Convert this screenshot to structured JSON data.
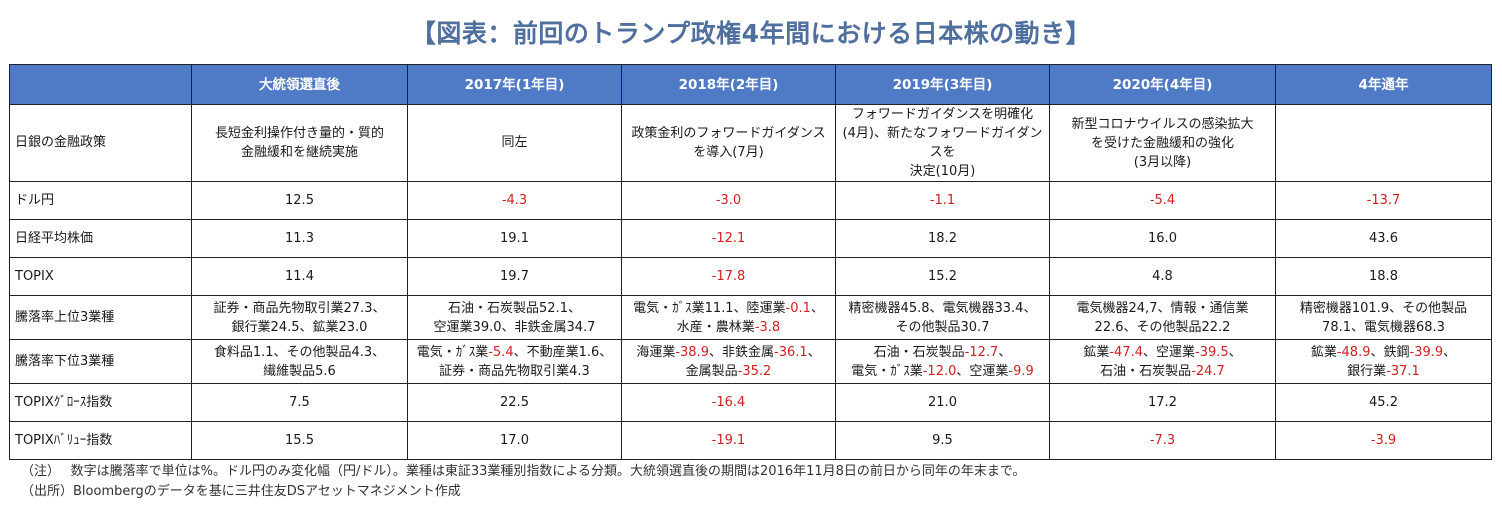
{
  "title": "【図表：前回のトランプ政権4年間における日本株の動き】",
  "headers": [
    "",
    "大統領選直後",
    "2017年(1年目)",
    "2018年(2年目)",
    "2019年(3年目)",
    "2020年(4年目)",
    "4年通年"
  ],
  "rows": {
    "policy": {
      "label": "日銀の金融政策",
      "c1": [
        "長短金利操作付き量的・質的",
        "金融緩和を継続実施"
      ],
      "c2": "同左",
      "c3": [
        "政策金利のフォワードガイダンス",
        "を導入(7月)"
      ],
      "c4": [
        "フォワードガイダンスを明確化",
        "(4月)、新たなフォワードガイダンスを",
        "決定(10月)"
      ],
      "c5": [
        "新型コロナウイルスの感染拡大",
        "を受けた金融緩和の強化",
        "(3月以降)"
      ],
      "c6": ""
    },
    "usdjpy": {
      "label": "ドル円",
      "values": [
        "12.5",
        "-4.3",
        "-3.0",
        "-1.1",
        "-5.4",
        "-13.7"
      ]
    },
    "nikkei": {
      "label": "日経平均株価",
      "values": [
        "11.3",
        "19.1",
        "-12.1",
        "18.2",
        "16.0",
        "43.6"
      ]
    },
    "topix": {
      "label": "TOPIX",
      "values": [
        "11.4",
        "19.7",
        "-17.8",
        "15.2",
        "4.8",
        "18.8"
      ]
    },
    "top3": {
      "label": "騰落率上位3業種",
      "c1": [
        "証券・商品先物取引業27.3、",
        "銀行業24.5、鉱業23.0"
      ],
      "c2": [
        "石油・石炭製品52.1、",
        "空運業39.0、非鉄金属34.7"
      ],
      "c3": {
        "l1a": "電気・ｶﾞｽ業11.1、陸運業",
        "l1b": "-0.1",
        "l1c": "、",
        "l2a": "水産・農林業",
        "l2b": "-3.8"
      },
      "c4": [
        "精密機器45.8、電気機器33.4、",
        "その他製品30.7"
      ],
      "c5": [
        "電気機器24,7、情報・通信業",
        "22.6、その他製品22.2"
      ],
      "c6": [
        "精密機器101.9、その他製品",
        "78.1、電気機器68.3"
      ]
    },
    "bottom3": {
      "label": "騰落率下位3業種",
      "c1": [
        "食料品1.1、その他製品4.3、",
        "繊維製品5.6"
      ],
      "c2": {
        "l1a": "電気・ｶﾞｽ業",
        "l1b": "-5.4",
        "l1c": "、不動産業1.6、",
        "l2": "証券・商品先物取引業4.3"
      },
      "c3": {
        "l1a": "海運業",
        "l1b": "-38.9",
        "l1c": "、非鉄金属",
        "l1d": "-36.1",
        "l1e": "、",
        "l2a": "金属製品",
        "l2b": "-35.2"
      },
      "c4": {
        "l1a": "石油・石炭製品",
        "l1b": "-12.7",
        "l1c": "、",
        "l2a": "電気・ｶﾞｽ業",
        "l2b": "-12.0",
        "l2c": "、空運業",
        "l2d": "-9.9"
      },
      "c5": {
        "l1a": "鉱業",
        "l1b": "-47.4",
        "l1c": "、空運業",
        "l1d": "-39.5",
        "l1e": "、",
        "l2a": "石油・石炭製品",
        "l2b": "-24.7"
      },
      "c6": {
        "l1a": "鉱業",
        "l1b": "-48.9",
        "l1c": "、鉄鋼",
        "l1d": "-39.9",
        "l1e": "、",
        "l2a": "銀行業",
        "l2b": "-37.1"
      }
    },
    "growth": {
      "label": "TOPIXｸﾞﾛｰｽ指数",
      "values": [
        "7.5",
        "22.5",
        "-16.4",
        "21.0",
        "17.2",
        "45.2"
      ]
    },
    "value": {
      "label": "TOPIXﾊﾞﾘｭｰ指数",
      "values": [
        "15.5",
        "17.0",
        "-19.1",
        "9.5",
        "-7.3",
        "-3.9"
      ]
    }
  },
  "notes": [
    "（注）　 数字は騰落率で単位は%。ドル円のみ変化幅（円/ドル）。業種は東証33業種別指数による分類。大統領選直後の期間は2016年11月8日の前日から同年の年末まで。",
    "（出所）Bloombergのデータを基に三井住友DSアセットマネジメント作成"
  ],
  "colors": {
    "header_bg": "#4f7bc6",
    "title": "#4f6f9e",
    "negative": "#d22020"
  }
}
